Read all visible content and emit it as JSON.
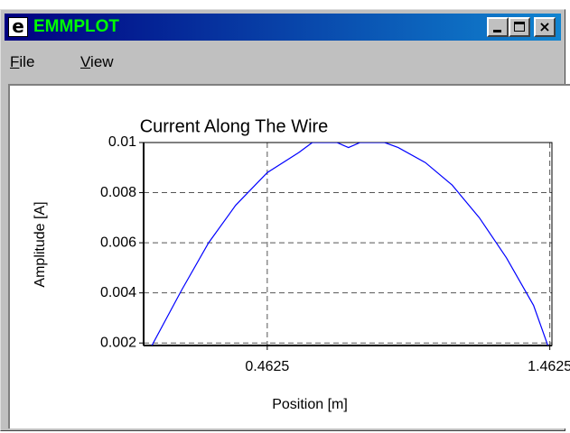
{
  "window": {
    "title": "EMMPLOT",
    "menu": [
      "File",
      "View"
    ]
  },
  "chart_data": {
    "type": "line",
    "title": "Current Along The Wire",
    "xlabel": "Position [m]",
    "ylabel": "Amplitude [A]",
    "x": [
      0.04,
      0.159,
      0.255,
      0.351,
      0.4625,
      0.574,
      0.622,
      0.709,
      0.75,
      0.791,
      0.878,
      0.926,
      1.022,
      1.117,
      1.213,
      1.309,
      1.405,
      1.465
    ],
    "values": [
      0.0016,
      0.0041,
      0.006,
      0.0075,
      0.0088,
      0.0096,
      0.01,
      0.01,
      0.0098,
      0.01,
      0.01,
      0.0098,
      0.0092,
      0.0083,
      0.007,
      0.0054,
      0.0035,
      0.0016
    ],
    "color": "#0000ff",
    "xlim": [
      0.025,
      1.47
    ],
    "ylim": [
      0.0019,
      0.01
    ],
    "xticks": [
      0.4625,
      1.4625
    ],
    "yticks": [
      0.002,
      0.004,
      0.006,
      0.008,
      0.01
    ],
    "grid": true
  }
}
